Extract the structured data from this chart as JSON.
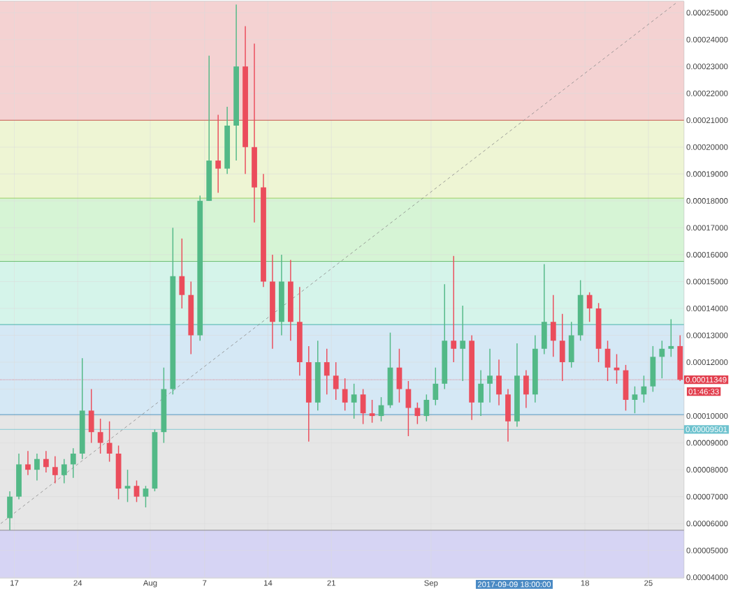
{
  "chart_data": {
    "type": "candlestick",
    "xlim": [
      "2017-07-15T10:00",
      "2017-09-28T22:00"
    ],
    "ylim": [
      3.98e-05,
      0.0002542
    ],
    "xticks": [
      {
        "value": "2017-07-17",
        "label": "17"
      },
      {
        "value": "2017-07-24",
        "label": "24"
      },
      {
        "value": "2017-08-01",
        "label": "Aug"
      },
      {
        "value": "2017-08-07",
        "label": "7"
      },
      {
        "value": "2017-08-14",
        "label": "14"
      },
      {
        "value": "2017-08-21",
        "label": "21"
      },
      {
        "value": "2017-09-01",
        "label": "Sep"
      },
      {
        "value": "2017-09-18",
        "label": "18"
      },
      {
        "value": "2017-09-25",
        "label": "25"
      }
    ],
    "yticks": [
      {
        "value": 4e-05,
        "label": "0.00004000"
      },
      {
        "value": 5e-05,
        "label": "0.00005000"
      },
      {
        "value": 6e-05,
        "label": "0.00006000"
      },
      {
        "value": 7e-05,
        "label": "0.00007000"
      },
      {
        "value": 8e-05,
        "label": "0.00008000"
      },
      {
        "value": 9e-05,
        "label": "0.00009000"
      },
      {
        "value": 0.0001,
        "label": "0.00010000"
      },
      {
        "value": 0.00011,
        "label": null
      },
      {
        "value": 0.00012,
        "label": "0.00012000"
      },
      {
        "value": 0.00013,
        "label": "0.00013000"
      },
      {
        "value": 0.00014,
        "label": "0.00014000"
      },
      {
        "value": 0.00015,
        "label": "0.00015000"
      },
      {
        "value": 0.00016,
        "label": "0.00016000"
      },
      {
        "value": 0.00017,
        "label": "0.00017000"
      },
      {
        "value": 0.00018,
        "label": "0.00018000"
      },
      {
        "value": 0.00019,
        "label": "0.00019000"
      },
      {
        "value": 0.0002,
        "label": "0.00020000"
      },
      {
        "value": 0.00021,
        "label": "0.00021000"
      },
      {
        "value": 0.00022,
        "label": "0.00022000"
      },
      {
        "value": 0.00023,
        "label": "0.00023000"
      },
      {
        "value": 0.00024,
        "label": "0.00024000"
      },
      {
        "value": 0.00025,
        "label": "0.00025000"
      }
    ],
    "grid": true,
    "bands": [
      {
        "axis": "y",
        "from": 0.00021,
        "to": 0.0002542,
        "color": "#f4d2d2"
      },
      {
        "axis": "y",
        "from": 0.000181,
        "to": 0.00021,
        "color": "#eef5d4"
      },
      {
        "axis": "y",
        "from": 0.0001575,
        "to": 0.000181,
        "color": "#d6f4d5"
      },
      {
        "axis": "y",
        "from": 0.000134,
        "to": 0.0001575,
        "color": "#d5f4ea"
      },
      {
        "axis": "y",
        "from": 0.0001005,
        "to": 0.000134,
        "color": "#d5e8f5"
      },
      {
        "axis": "y",
        "from": 5.75e-05,
        "to": 0.0001005,
        "color": "#e6e6e6"
      },
      {
        "axis": "y",
        "from": 3.98e-05,
        "to": 5.75e-05,
        "color": "#d6d4f4"
      }
    ],
    "ref_lines": [
      {
        "axis": "y",
        "value": 0.00021,
        "color": "#c0392b"
      },
      {
        "axis": "y",
        "value": 0.000181,
        "color": "#8bc34a"
      },
      {
        "axis": "y",
        "value": 0.0001575,
        "color": "#4caf50"
      },
      {
        "axis": "y",
        "value": 0.000134,
        "color": "#26a69a"
      },
      {
        "axis": "y",
        "value": 0.0001005,
        "color": "#2d7fb0"
      },
      {
        "axis": "y",
        "value": 5.75e-05,
        "color": "#777777"
      },
      {
        "axis": "y",
        "value": 0.00011349,
        "label": "0.00011349",
        "color": "#e2404f",
        "line_style": "dotted"
      },
      {
        "axis": "y",
        "value": 9.501e-05,
        "label": "0.00009501",
        "color": "#6fc3cf"
      }
    ],
    "annotations": [
      "2017-09-09 18:00:00",
      "01:46:33"
    ],
    "series": [
      {
        "color": "#53b987",
        "x": [
          "2017-07-16T12:00",
          "2017-07-17T12:00",
          "2017-07-19T12:00",
          "2017-07-22T12:00",
          "2017-07-23T12:00",
          "2017-07-24T12:00",
          "2017-07-29T12:00",
          "2017-07-31T12:00",
          "2017-08-01T12:00",
          "2017-08-02T12:00",
          "2017-08-03T12:00",
          "2017-08-06T12:00",
          "2017-08-07T12:00",
          "2017-08-09T12:00",
          "2017-08-10T12:00",
          "2017-08-15T12:00",
          "2017-08-19T12:00",
          "2017-08-23T12:00",
          "2017-08-26T12:00",
          "2017-08-27T12:00",
          "2017-08-31T12:00",
          "2017-09-01T12:00",
          "2017-09-02T12:00",
          "2017-09-04T12:00",
          "2017-09-06T12:00",
          "2017-09-07T12:00",
          "2017-09-10T12:00",
          "2017-09-12T12:00",
          "2017-09-13T12:00",
          "2017-09-16T12:00",
          "2017-09-17T12:00",
          "2017-09-23T12:00",
          "2017-09-24T12:00",
          "2017-09-25T12:00",
          "2017-09-26T12:00",
          "2017-09-27T12:00"
        ],
        "ohlc": [
          [
            6.2e-05,
            7.2e-05,
            5.75e-05,
            7e-05
          ],
          [
            7e-05,
            8.6e-05,
            6.9e-05,
            8.2e-05
          ],
          [
            8e-05,
            8.6e-05,
            7.6e-05,
            8.4e-05
          ],
          [
            7.8e-05,
            8.4e-05,
            7.5e-05,
            8.2e-05
          ],
          [
            8.2e-05,
            8.8e-05,
            7.7e-05,
            8.6e-05
          ],
          [
            8.6e-05,
            0.0001215,
            8.4e-05,
            0.000102
          ],
          [
            7.3e-05,
            8e-05,
            6.8e-05,
            7.4e-05
          ],
          [
            7e-05,
            7.4e-05,
            6.6e-05,
            7.3e-05
          ],
          [
            7.3e-05,
            9.5e-05,
            7.2e-05,
            9.4e-05
          ],
          [
            9.4e-05,
            0.000118,
            9e-05,
            0.00011
          ],
          [
            0.00011,
            0.00017,
            0.000108,
            0.000152
          ],
          [
            0.00013,
            0.000182,
            0.000128,
            0.00018
          ],
          [
            0.00018,
            0.000234,
            0.00018,
            0.000195
          ],
          [
            0.000192,
            0.000215,
            0.00019,
            0.000208
          ],
          [
            0.000208,
            0.000253,
            0.000195,
            0.00023
          ],
          [
            0.000135,
            0.00016,
            0.00013,
            0.00015
          ],
          [
            0.000105,
            0.000128,
            0.000102,
            0.00012
          ],
          [
            0.000105,
            0.000112,
            9.9e-05,
            0.000108
          ],
          [
            0.0001,
            0.000107,
            9.8e-05,
            0.000104
          ],
          [
            0.000104,
            0.000131,
            0.000103,
            0.000118
          ],
          [
            0.0001,
            0.000108,
            9.8e-05,
            0.000106
          ],
          [
            0.000106,
            0.000118,
            0.000104,
            0.000112
          ],
          [
            0.000112,
            0.000149,
            0.00011,
            0.000128
          ],
          [
            0.000125,
            0.000141,
            0.000113,
            0.000128
          ],
          [
            0.000105,
            0.000117,
            0.0001,
            0.000112
          ],
          [
            0.000112,
            0.000125,
            0.000105,
            0.000115
          ],
          [
            9.8e-05,
            0.000127,
            9.6e-05,
            0.000115
          ],
          [
            0.000108,
            0.00013,
            0.000105,
            0.000125
          ],
          [
            0.000125,
            0.0001565,
            0.000123,
            0.000135
          ],
          [
            0.00012,
            0.000135,
            0.000118,
            0.00013
          ],
          [
            0.00013,
            0.0001505,
            0.000128,
            0.000145
          ],
          [
            0.000106,
            0.000111,
            0.000101,
            0.000108
          ],
          [
            0.000108,
            0.000115,
            0.000105,
            0.000111
          ],
          [
            0.000111,
            0.000126,
            0.000109,
            0.000122
          ],
          [
            0.000122,
            0.000128,
            0.000114,
            0.000125
          ],
          [
            0.000125,
            0.000136,
            0.000122,
            0.000126
          ]
        ]
      },
      {
        "color": "#eb4d5c",
        "x": [
          "2017-07-18T12:00",
          "2017-07-20T12:00",
          "2017-07-21T12:00",
          "2017-07-25T12:00",
          "2017-07-26T12:00",
          "2017-07-27T12:00",
          "2017-07-28T12:00",
          "2017-07-30T12:00",
          "2017-08-04T12:00",
          "2017-08-05T12:00",
          "2017-08-08T12:00",
          "2017-08-11T12:00",
          "2017-08-12T12:00",
          "2017-08-13T12:00",
          "2017-08-14T12:00",
          "2017-08-16T12:00",
          "2017-08-17T12:00",
          "2017-08-18T12:00",
          "2017-08-20T12:00",
          "2017-08-21T12:00",
          "2017-08-22T12:00",
          "2017-08-24T12:00",
          "2017-08-25T12:00",
          "2017-08-28T12:00",
          "2017-08-29T12:00",
          "2017-08-30T12:00",
          "2017-09-03T12:00",
          "2017-09-05T12:00",
          "2017-09-08T12:00",
          "2017-09-09T12:00",
          "2017-09-11T12:00",
          "2017-09-14T12:00",
          "2017-09-15T12:00",
          "2017-09-18T12:00",
          "2017-09-19T12:00",
          "2017-09-20T12:00",
          "2017-09-21T12:00",
          "2017-09-22T12:00",
          "2017-09-28T12:00"
        ],
        "ohlc": [
          [
            8.2e-05,
            8.7e-05,
            7.8e-05,
            8e-05
          ],
          [
            8.4e-05,
            8.7e-05,
            7.9e-05,
            8.1e-05
          ],
          [
            8.1e-05,
            8.5e-05,
            7.5e-05,
            7.8e-05
          ],
          [
            0.000102,
            0.00011,
            9e-05,
            9.4e-05
          ],
          [
            9.4e-05,
            9.9e-05,
            8.6e-05,
            9e-05
          ],
          [
            9e-05,
            9.8e-05,
            8.3e-05,
            8.6e-05
          ],
          [
            8.6e-05,
            8.9e-05,
            6.9e-05,
            7.3e-05
          ],
          [
            7.4e-05,
            7.6e-05,
            6.8e-05,
            7e-05
          ],
          [
            0.000152,
            0.000166,
            0.00014,
            0.000145
          ],
          [
            0.000145,
            0.00015,
            0.000123,
            0.00013
          ],
          [
            0.000195,
            0.000212,
            0.000183,
            0.000192
          ],
          [
            0.00023,
            0.000245,
            0.00019,
            0.0002
          ],
          [
            0.0002,
            0.0002385,
            0.000172,
            0.000185
          ],
          [
            0.000185,
            0.00019,
            0.000148,
            0.00015
          ],
          [
            0.00015,
            0.00016,
            0.000125,
            0.000135
          ],
          [
            0.00015,
            0.000158,
            0.000128,
            0.000135
          ],
          [
            0.000135,
            0.000148,
            0.000115,
            0.00012
          ],
          [
            0.00012,
            0.000126,
            9.05e-05,
            0.000105
          ],
          [
            0.00012,
            0.000125,
            0.000108,
            0.000115
          ],
          [
            0.000115,
            0.00012,
            0.000106,
            0.00011
          ],
          [
            0.00011,
            0.000114,
            0.000102,
            0.000105
          ],
          [
            0.000108,
            0.00011,
            9.7e-05,
            0.000101
          ],
          [
            0.000101,
            0.000106,
            9.75e-05,
            0.0001
          ],
          [
            0.000118,
            0.000125,
            0.000105,
            0.00011
          ],
          [
            0.00011,
            0.000113,
            9.25e-05,
            0.000103
          ],
          [
            0.000103,
            0.000105,
            9.7e-05,
            0.0001
          ],
          [
            0.000128,
            0.0001595,
            0.00012,
            0.000125
          ],
          [
            0.000128,
            0.00013,
            9.85e-05,
            0.000105
          ],
          [
            0.000115,
            0.000121,
            0.000104,
            0.000108
          ],
          [
            0.000108,
            0.00011,
            9.05e-05,
            9.8e-05
          ],
          [
            0.000115,
            0.000117,
            0.000103,
            0.000108
          ],
          [
            0.000135,
            0.000145,
            0.000122,
            0.000128
          ],
          [
            0.000128,
            0.000138,
            0.000113,
            0.00012
          ],
          [
            0.000145,
            0.000146,
            0.000135,
            0.00014
          ],
          [
            0.00014,
            0.000142,
            0.00012,
            0.000125
          ],
          [
            0.000125,
            0.000128,
            0.000113,
            0.000118
          ],
          [
            0.000118,
            0.000123,
            0.000112,
            0.000117
          ],
          [
            0.000117,
            0.000119,
            0.000102,
            0.000106
          ],
          [
            0.000126,
            0.00013,
            0.000113,
            0.00011349
          ]
        ]
      },
      {
        "type": "line",
        "color": "#888888",
        "line_style": "dashed",
        "x": [
          "2017-07-15T12:00",
          "2017-09-28T05:00"
        ],
        "values": [
          6e-05,
          0.000254
        ]
      }
    ]
  }
}
